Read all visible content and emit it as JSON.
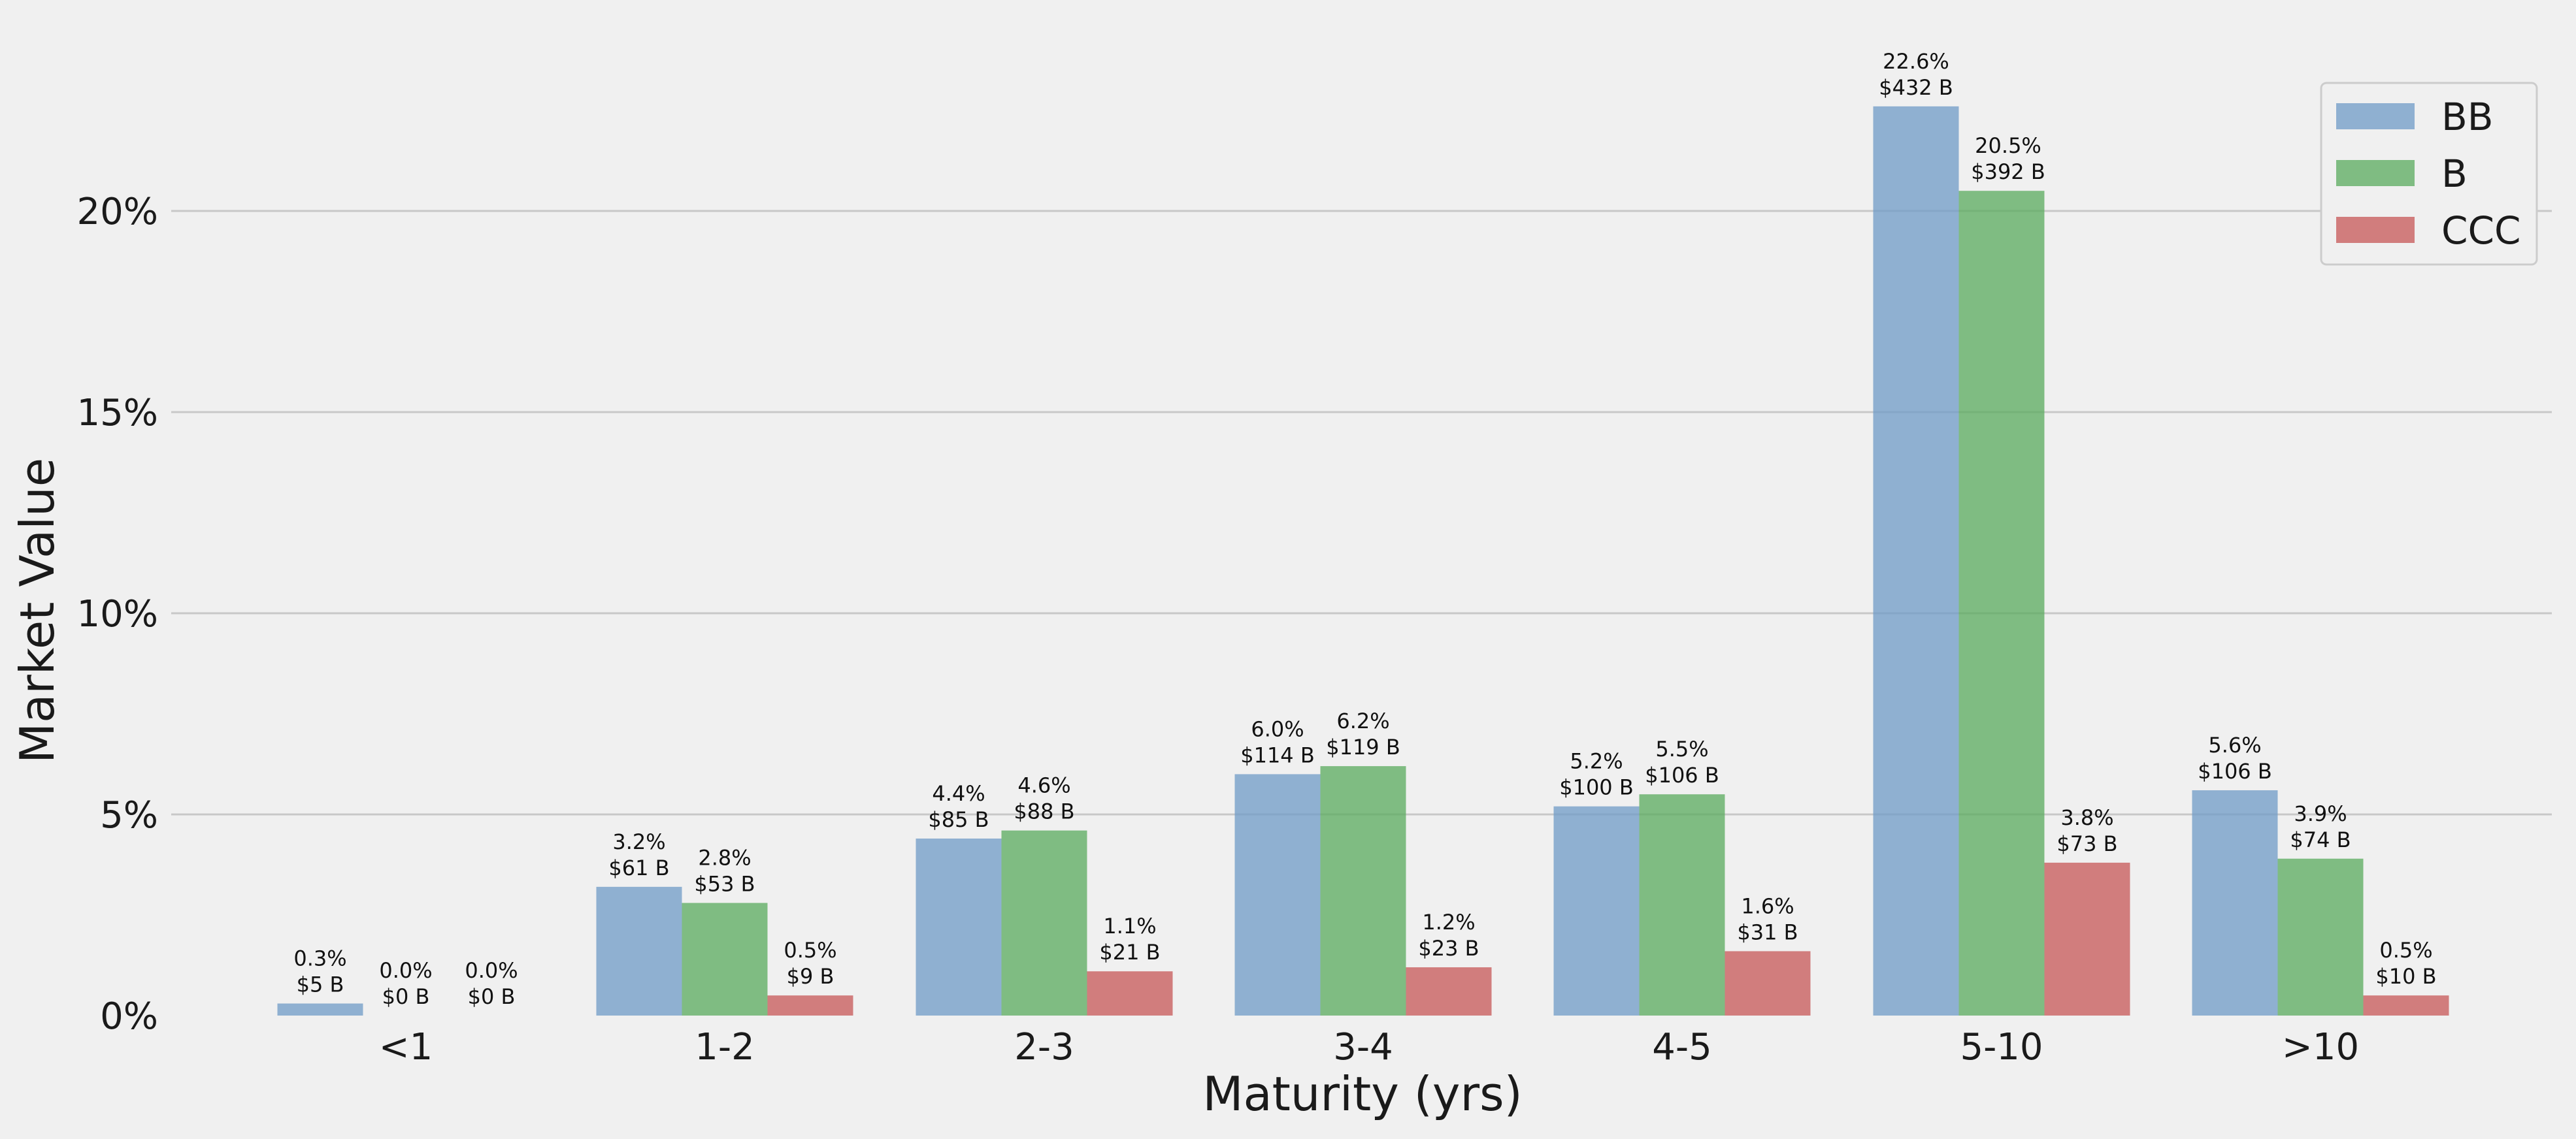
{
  "chart_data": {
    "type": "bar",
    "title": "",
    "xlabel": "Maturity (yrs)",
    "ylabel": "Market Value",
    "categories": [
      "<1",
      "1-2",
      "2-3",
      "3-4",
      "4-5",
      "5-10",
      ">10"
    ],
    "ylim": [
      0,
      24
    ],
    "yticks": [
      0,
      5,
      10,
      15,
      20
    ],
    "ytick_labels": [
      "0%",
      "5%",
      "10%",
      "15%",
      "20%"
    ],
    "grid": "horizontal",
    "legend_position": "top-right",
    "series": [
      {
        "name": "BB",
        "color": "#6f9bc7",
        "values": [
          0.3,
          3.2,
          4.4,
          6.0,
          5.2,
          22.6,
          5.6
        ],
        "labels_pct": [
          "0.3%",
          "3.2%",
          "4.4%",
          "6.0%",
          "5.2%",
          "22.6%",
          "5.6%"
        ],
        "labels_usd": [
          "$5 B",
          "$61 B",
          "$85 B",
          "$114 B",
          "$100 B",
          "$432 B",
          "$106 B"
        ]
      },
      {
        "name": "B",
        "color": "#5aab5e",
        "values": [
          0.0,
          2.8,
          4.6,
          6.2,
          5.5,
          20.5,
          3.9
        ],
        "labels_pct": [
          "0.0%",
          "2.8%",
          "4.6%",
          "6.2%",
          "5.5%",
          "20.5%",
          "3.9%"
        ],
        "labels_usd": [
          "$0 B",
          "$53 B",
          "$88 B",
          "$119 B",
          "$106 B",
          "$392 B",
          "$74 B"
        ]
      },
      {
        "name": "CCC",
        "color": "#c75757",
        "values": [
          0.0,
          0.5,
          1.1,
          1.2,
          1.6,
          3.8,
          0.5
        ],
        "labels_pct": [
          "0.0%",
          "0.5%",
          "1.1%",
          "1.2%",
          "1.6%",
          "3.8%",
          "0.5%"
        ],
        "labels_usd": [
          "$0 B",
          "$9 B",
          "$21 B",
          "$23 B",
          "$31 B",
          "$73 B",
          "$10 B"
        ]
      }
    ]
  }
}
